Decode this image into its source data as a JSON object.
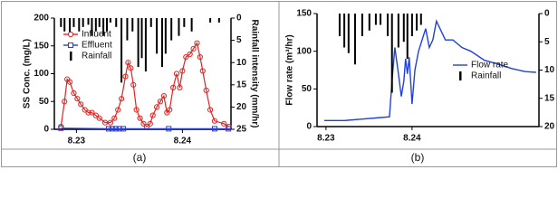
{
  "chart_data": [
    {
      "type": "line",
      "caption": "(a)",
      "ylabel": "SS Conc. (mg/L)",
      "y2label": "Rainfall intensity (mm/hr)",
      "xlim": [
        -5,
        35
      ],
      "xticks": [
        {
          "value": 0,
          "label": "8.23"
        },
        {
          "value": 24,
          "label": "8.24"
        }
      ],
      "ylim": [
        0,
        200
      ],
      "yticks": [
        0,
        50,
        100,
        150,
        200
      ],
      "y2lim": [
        0,
        25
      ],
      "y2ticks": [
        0,
        5,
        10,
        15,
        20,
        25
      ],
      "y2_inverted": true,
      "legend": "upper left",
      "series": [
        {
          "name": "Influent",
          "color": "#e02424",
          "marker": "circle",
          "x": [
            -3.5,
            -2.7,
            -2.1,
            -1.5,
            -0.6,
            0.2,
            1.0,
            1.9,
            2.7,
            3.5,
            4.4,
            5.2,
            6.5,
            7.7,
            8.6,
            9.4,
            10.2,
            11.1,
            11.7,
            12.3,
            12.9,
            13.6,
            14.4,
            15.2,
            15.9,
            16.7,
            17.3,
            18.2,
            19.0,
            19.8,
            20.5,
            21.1,
            21.9,
            22.7,
            23.4,
            24.0,
            24.8,
            25.7,
            26.5,
            27.3,
            28.0,
            28.6,
            29.4,
            30.3,
            31.3,
            33.4,
            34.5
          ],
          "values": [
            5,
            50,
            90,
            85,
            65,
            55,
            45,
            35,
            30,
            30,
            25,
            20,
            12,
            12,
            20,
            35,
            55,
            95,
            120,
            110,
            80,
            35,
            20,
            10,
            5,
            10,
            25,
            40,
            50,
            60,
            30,
            35,
            75,
            100,
            75,
            105,
            130,
            135,
            145,
            155,
            130,
            105,
            70,
            35,
            15,
            10,
            5
          ]
        },
        {
          "name": "Effluent",
          "color": "#2a3fd0",
          "marker": "square",
          "x": [
            -3.5,
            7.3,
            8.1,
            8.9,
            9.7,
            10.6,
            20.9,
            31.3,
            34.4
          ],
          "values": [
            2,
            1,
            1,
            1,
            1,
            1,
            1,
            1,
            1
          ]
        },
        {
          "name": "Rainfall",
          "color": "#000000",
          "marker": "bar",
          "axis": "y2",
          "x": [
            -3.5,
            -2.7,
            -1.5,
            -0.6,
            0.6,
            1.5,
            2.7,
            3.5,
            4.4,
            5.2,
            6.1,
            6.9,
            7.7,
            9.0,
            10.2,
            11.5,
            12.7,
            14.0,
            14.8,
            15.7,
            16.9,
            18.2,
            19.4,
            20.2,
            21.5,
            23.2,
            24.4,
            26.1,
            30.3,
            32.3
          ],
          "values": [
            2,
            3,
            4,
            2,
            3,
            2,
            1.5,
            4,
            3,
            2,
            4,
            3,
            1,
            2,
            14.5,
            5,
            3,
            11,
            9,
            12,
            2,
            8,
            11,
            8,
            5,
            4,
            2,
            3,
            1,
            1
          ]
        }
      ]
    },
    {
      "type": "line",
      "caption": "(b)",
      "ylabel": "Flow rate (m³/hr)",
      "y2label": "Rainfall intensity (mm/hr)",
      "xlim": [
        -2.5,
        59.4
      ],
      "xticks": [
        {
          "value": 0,
          "label": "8.23"
        },
        {
          "value": 24,
          "label": "8.24"
        }
      ],
      "ylim": [
        0,
        150
      ],
      "yticks": [
        0,
        50,
        100,
        150
      ],
      "y2lim": [
        0,
        20
      ],
      "y2ticks": [
        0,
        5,
        10,
        15,
        20
      ],
      "y2_inverted": true,
      "legend": "center right",
      "series": [
        {
          "name": "Flow rate",
          "color": "#1f3fe0",
          "marker": "none",
          "x": [
            -0.5,
            5.1,
            10.1,
            15.2,
            17.7,
            18.4,
            19.2,
            20.2,
            21.0,
            21.7,
            22.2,
            22.7,
            23.2,
            24.0,
            24.8,
            25.8,
            26.8,
            27.8,
            28.8,
            29.8,
            30.8,
            31.8,
            33.3,
            35.4,
            37.9,
            40.4,
            44.2,
            48.0,
            51.8,
            55.6,
            58.6
          ],
          "values": [
            8,
            8,
            10,
            12,
            13,
            60,
            105,
            70,
            40,
            60,
            90,
            70,
            92,
            30,
            75,
            100,
            115,
            130,
            105,
            115,
            140,
            130,
            115,
            115,
            105,
            100,
            88,
            83,
            77,
            73,
            72
          ]
        },
        {
          "name": "Rainfall",
          "color": "#000000",
          "marker": "bar",
          "axis": "y2",
          "x": [
            3.8,
            5.1,
            6.3,
            8.1,
            10.1,
            12.1,
            13.9,
            15.2,
            17.2,
            18.4,
            20.2,
            21.7,
            22.7,
            24.0,
            25.3,
            26.5
          ],
          "values": [
            4,
            6,
            7,
            9,
            4,
            3,
            2,
            2,
            4,
            14,
            6,
            5,
            8,
            4,
            3,
            2
          ]
        }
      ]
    }
  ]
}
